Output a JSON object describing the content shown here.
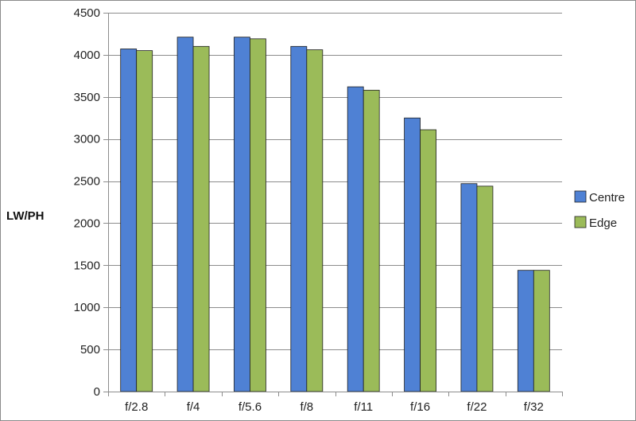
{
  "chart_data": {
    "type": "bar",
    "title": "",
    "xlabel": "",
    "ylabel": "LW/PH",
    "ylim": [
      0,
      4500
    ],
    "yticks": [
      0,
      500,
      1000,
      1500,
      2000,
      2500,
      3000,
      3500,
      4000,
      4500
    ],
    "grid": true,
    "legend_position": "right",
    "categories": [
      "f/2.8",
      "f/4",
      "f/5.6",
      "f/8",
      "f/11",
      "f/16",
      "f/22",
      "f/32"
    ],
    "series": [
      {
        "name": "Centre",
        "color": "#4f81d4",
        "values": [
          4070,
          4210,
          4210,
          4100,
          3620,
          3250,
          2470,
          1440
        ]
      },
      {
        "name": "Edge",
        "color": "#9bbb59",
        "values": [
          4050,
          4100,
          4190,
          4060,
          3580,
          3110,
          2440,
          1440
        ]
      }
    ]
  }
}
